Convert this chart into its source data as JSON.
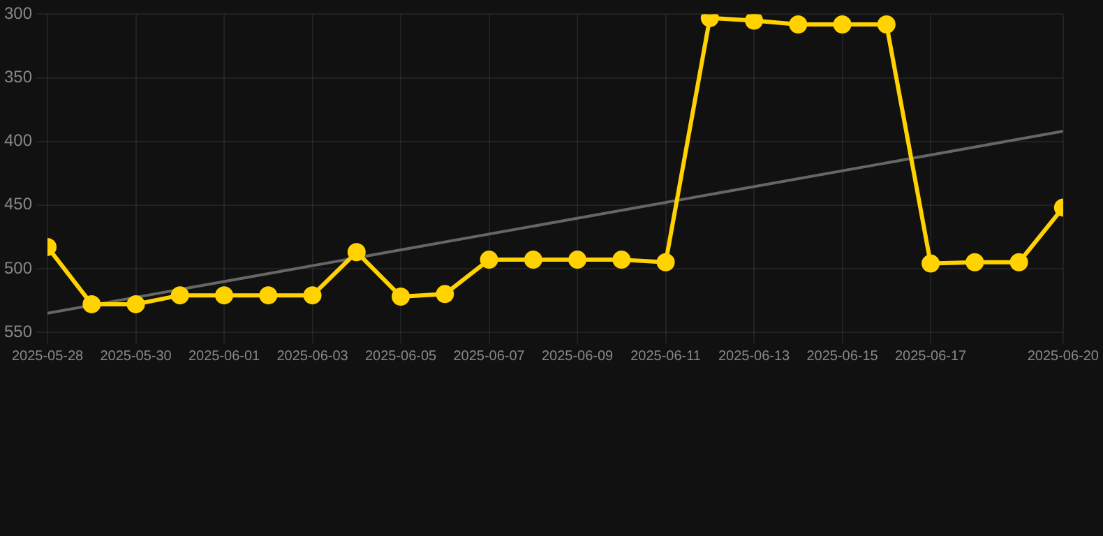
{
  "chart_data": {
    "type": "line",
    "x": [
      "2025-05-28",
      "2025-05-29",
      "2025-05-30",
      "2025-05-31",
      "2025-06-01",
      "2025-06-02",
      "2025-06-03",
      "2025-06-04",
      "2025-06-05",
      "2025-06-06",
      "2025-06-07",
      "2025-06-08",
      "2025-06-09",
      "2025-06-10",
      "2025-06-11",
      "2025-06-12",
      "2025-06-13",
      "2025-06-14",
      "2025-06-15",
      "2025-06-16",
      "2025-06-17",
      "2025-06-18",
      "2025-06-19",
      "2025-06-20"
    ],
    "series": [
      {
        "color": "#ffd200",
        "marker": "circle",
        "values": [
          483,
          528,
          528,
          521,
          521,
          521,
          521,
          487,
          522,
          520,
          493,
          493,
          493,
          493,
          495,
          303,
          305,
          308,
          308,
          308,
          496,
          495,
          495,
          452
        ]
      },
      {
        "color": "#666666",
        "marker": "none",
        "x": [
          "2025-05-28",
          "2025-06-20"
        ],
        "values": [
          535,
          392
        ]
      }
    ],
    "xlim": [
      "2025-05-28",
      "2025-06-20"
    ],
    "xticks": [
      "2025-05-28",
      "2025-05-30",
      "2025-06-01",
      "2025-06-03",
      "2025-06-05",
      "2025-06-07",
      "2025-06-09",
      "2025-06-11",
      "2025-06-13",
      "2025-06-15",
      "2025-06-17",
      "2025-06-20"
    ],
    "ylim": [
      550,
      300
    ],
    "yticks": [
      300,
      350,
      400,
      450,
      500,
      550
    ],
    "grid": true
  }
}
